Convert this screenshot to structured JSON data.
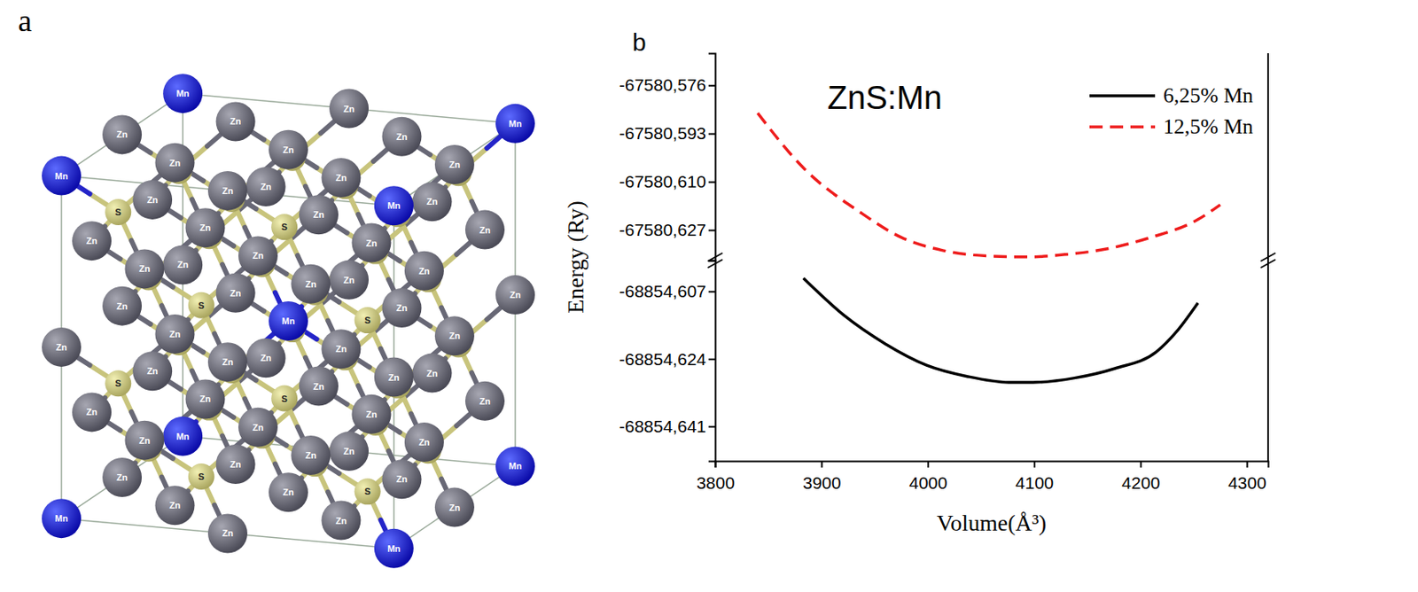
{
  "panel_a": {
    "type": "crystal_structure",
    "label": "a",
    "elements": [
      "Mn",
      "Zn",
      "S"
    ]
  },
  "chart_data": {
    "type": "line",
    "panel_label": "b",
    "annotation": "ZnS:Mn",
    "x_label": "Volume(Å³)",
    "y_label": "Energy (Ry)",
    "xlim": [
      3800,
      4320
    ],
    "xticks": [
      3800,
      3900,
      4000,
      4100,
      4200,
      4300
    ],
    "y_segments": [
      {
        "ylim": [
          -68854.6497,
          -68854.5992
        ],
        "yticks": [
          {
            "value": -68854.641,
            "label": "-68854,641"
          },
          {
            "value": -68854.624,
            "label": "-68854,624"
          },
          {
            "value": -68854.607,
            "label": "-68854,607"
          }
        ]
      },
      {
        "ylim": [
          -67580.6377,
          -67580.5647
        ],
        "yticks": [
          {
            "value": -67580.627,
            "label": "-67580,627"
          },
          {
            "value": -67580.61,
            "label": "-67580,610"
          },
          {
            "value": -67580.593,
            "label": "-67580,593"
          },
          {
            "value": -67580.576,
            "label": "-67580,576"
          }
        ]
      }
    ],
    "legend": "top-right",
    "series": [
      {
        "name": "6,25% Mn",
        "color": "#000000",
        "line_style": "solid",
        "y_segment": 0,
        "x": [
          3883,
          3921,
          3960,
          3999,
          4037,
          4076,
          4099,
          4138,
          4176,
          4215,
          4234,
          4254
        ],
        "values": [
          -68854.6037,
          -68854.613,
          -68854.6202,
          -68854.6256,
          -68854.6284,
          -68854.6299,
          -68854.6299,
          -68854.6288,
          -68854.6264,
          -68854.6222,
          -68854.6171,
          -68854.6099
        ]
      },
      {
        "name": "12,5% Mn",
        "color": "#ee1c1c",
        "line_style": "dashed",
        "y_segment": 1,
        "x": [
          3840,
          3883,
          3937,
          3975,
          4014,
          4060,
          4095,
          4130,
          4169,
          4207,
          4254,
          4275
        ],
        "values": [
          -67580.5858,
          -67580.6051,
          -67580.6209,
          -67580.6296,
          -67580.6342,
          -67580.6362,
          -67580.6365,
          -67580.6356,
          -67580.6336,
          -67580.6299,
          -67580.6233,
          -67580.6181
        ]
      }
    ]
  }
}
